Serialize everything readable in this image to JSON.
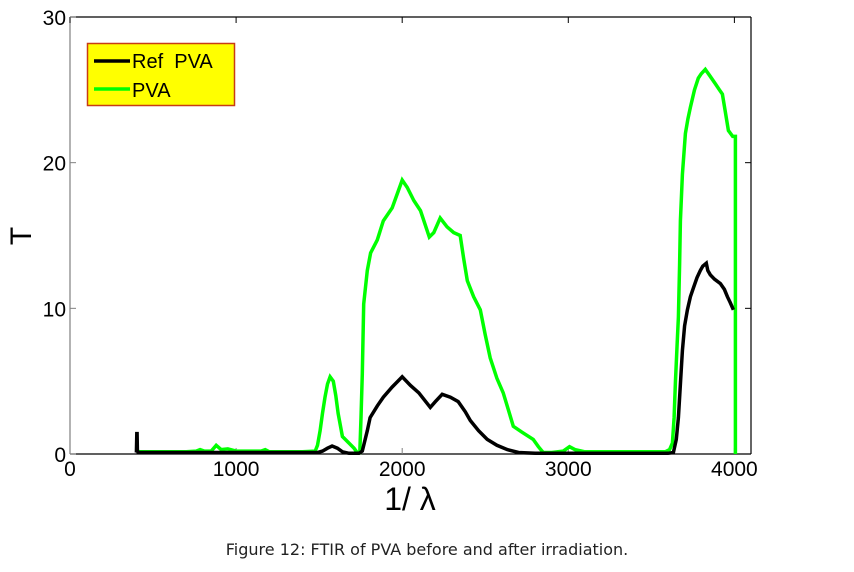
{
  "chart_data": {
    "type": "line",
    "title": "",
    "xlabel": "1/ λ",
    "ylabel": "T",
    "xlim": [
      0,
      4100
    ],
    "ylim": [
      0,
      30
    ],
    "xticks": [
      0,
      1000,
      2000,
      3000,
      4000
    ],
    "xtick_labels": [
      "0",
      "1000",
      "2000",
      "3000",
      "4000"
    ],
    "yticks": [
      0,
      10,
      20,
      30
    ],
    "ytick_labels": [
      "0",
      "10",
      "20",
      "30"
    ],
    "grid": false,
    "legend_position": "top-left",
    "series": [
      {
        "name": "Ref  PVA",
        "color": "#000000",
        "x": [
          400,
          402,
          404,
          406,
          410,
          500,
          800,
          1000,
          1200,
          1490,
          1520,
          1550,
          1578,
          1610,
          1640,
          1680,
          1740,
          1760,
          1790,
          1807,
          1850,
          1886,
          1940,
          2000,
          2050,
          2100,
          2169,
          2200,
          2241,
          2290,
          2337,
          2380,
          2410,
          2460,
          2512,
          2570,
          2633,
          2700,
          2800,
          3000,
          3300,
          3600,
          3633,
          3650,
          3663,
          3675,
          3687,
          3700,
          3717,
          3735,
          3753,
          3775,
          3795,
          3810,
          3831,
          3840,
          3855,
          3880,
          3916,
          3940,
          3958,
          3975,
          3994
        ],
        "y": [
          0.1,
          1.4,
          1.4,
          0.2,
          0.1,
          0.1,
          0.1,
          0.1,
          0.1,
          0.1,
          0.2,
          0.4,
          0.55,
          0.4,
          0.15,
          0.05,
          0.05,
          0.2,
          1.6,
          2.5,
          3.3,
          3.9,
          4.6,
          5.3,
          4.7,
          4.2,
          3.2,
          3.6,
          4.1,
          3.9,
          3.6,
          2.9,
          2.3,
          1.6,
          1.0,
          0.6,
          0.3,
          0.1,
          0.05,
          0.05,
          0.05,
          0.05,
          0.1,
          1.0,
          2.5,
          4.8,
          7.1,
          8.8,
          9.9,
          10.8,
          11.4,
          12.1,
          12.6,
          12.9,
          13.1,
          12.6,
          12.3,
          12.0,
          11.7,
          11.3,
          10.8,
          10.4,
          9.9
        ]
      },
      {
        "name": "PVA",
        "color": "#00ff00",
        "x": [
          404,
          420,
          500,
          600,
          700,
          760,
          783,
          810,
          850,
          880,
          910,
          950,
          1000,
          1100,
          1150,
          1175,
          1200,
          1300,
          1400,
          1476,
          1490,
          1506,
          1520,
          1535,
          1550,
          1566,
          1585,
          1600,
          1614,
          1640,
          1680,
          1710,
          1729,
          1745,
          1752,
          1760,
          1768,
          1790,
          1810,
          1850,
          1886,
          1940,
          2000,
          2030,
          2070,
          2110,
          2163,
          2190,
          2229,
          2270,
          2310,
          2349,
          2370,
          2392,
          2430,
          2470,
          2500,
          2530,
          2570,
          2608,
          2640,
          2669,
          2720,
          2789,
          2820,
          2849,
          2900,
          2970,
          3007,
          3040,
          3100,
          3300,
          3500,
          3584,
          3610,
          3627,
          3637,
          3645,
          3655,
          3663,
          3670,
          3675,
          3687,
          3705,
          3720,
          3735,
          3760,
          3783,
          3800,
          3825,
          3850,
          3886,
          3910,
          3928,
          3945,
          3964,
          3990,
          4006,
          4006
        ],
        "y": [
          0.2,
          0.15,
          0.15,
          0.15,
          0.15,
          0.2,
          0.3,
          0.2,
          0.2,
          0.6,
          0.3,
          0.35,
          0.2,
          0.2,
          0.2,
          0.3,
          0.15,
          0.15,
          0.15,
          0.2,
          0.6,
          1.6,
          2.8,
          3.9,
          4.8,
          5.3,
          5.0,
          4.0,
          2.8,
          1.2,
          0.75,
          0.4,
          0.1,
          0.1,
          2.5,
          5.5,
          10.3,
          12.6,
          13.8,
          14.7,
          16.0,
          16.9,
          18.8,
          18.3,
          17.4,
          16.7,
          14.9,
          15.2,
          16.2,
          15.6,
          15.2,
          15.0,
          13.4,
          11.9,
          10.8,
          9.9,
          8.2,
          6.6,
          5.2,
          4.2,
          3.0,
          1.9,
          1.5,
          1.0,
          0.5,
          0.1,
          0.1,
          0.2,
          0.5,
          0.3,
          0.15,
          0.15,
          0.15,
          0.15,
          0.3,
          0.75,
          2.5,
          4.9,
          7.5,
          9.4,
          13.0,
          16.0,
          19.2,
          22.0,
          23.0,
          23.8,
          25.0,
          25.8,
          26.1,
          26.4,
          26.0,
          25.4,
          25.0,
          24.7,
          23.5,
          22.2,
          21.8,
          21.8,
          0
        ]
      }
    ]
  },
  "caption": "Figure 12: FTIR of PVA before and after irradiation.",
  "legend": {
    "background": "#ffff00",
    "border": "#c83c14"
  }
}
